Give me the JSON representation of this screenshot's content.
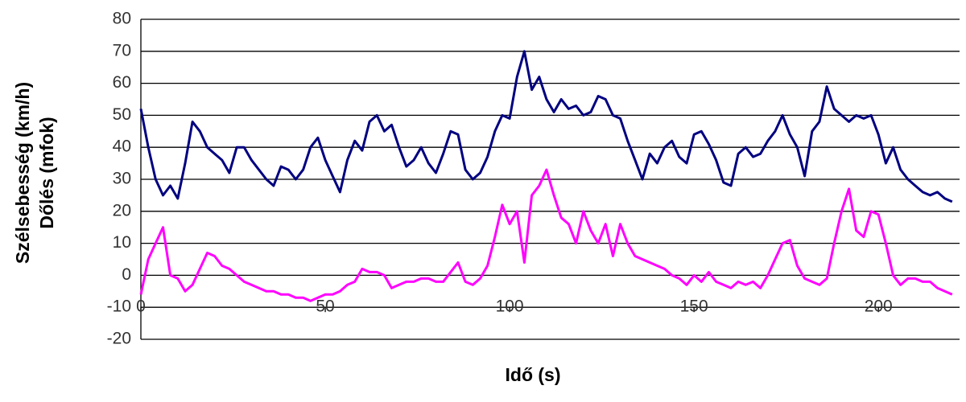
{
  "chart_data": {
    "type": "line",
    "xlabel": "Idő (s)",
    "x": [
      0,
      2,
      4,
      6,
      8,
      10,
      12,
      14,
      16,
      18,
      20,
      22,
      24,
      26,
      28,
      30,
      32,
      34,
      36,
      38,
      40,
      42,
      44,
      46,
      48,
      50,
      52,
      54,
      56,
      58,
      60,
      62,
      64,
      66,
      68,
      70,
      72,
      74,
      76,
      78,
      80,
      82,
      84,
      86,
      88,
      90,
      92,
      94,
      96,
      98,
      100,
      102,
      104,
      106,
      108,
      110,
      112,
      114,
      116,
      118,
      120,
      122,
      124,
      126,
      128,
      130,
      132,
      134,
      136,
      138,
      140,
      142,
      144,
      146,
      148,
      150,
      152,
      154,
      156,
      158,
      160,
      162,
      164,
      166,
      168,
      170,
      172,
      174,
      176,
      178,
      180,
      182,
      184,
      186,
      188,
      190,
      192,
      194,
      196,
      198,
      200,
      202,
      204,
      206,
      208,
      210,
      212,
      214,
      216,
      218,
      220
    ],
    "series": [
      {
        "name": "Szélsebesség (km/h)",
        "color": "#000080",
        "values": [
          52,
          40,
          30,
          25,
          28,
          24,
          35,
          48,
          45,
          40,
          38,
          36,
          32,
          40,
          40,
          36,
          33,
          30,
          28,
          34,
          33,
          30,
          33,
          40,
          43,
          36,
          31,
          26,
          36,
          42,
          39,
          48,
          50,
          45,
          47,
          40,
          34,
          36,
          40,
          35,
          32,
          38,
          45,
          44,
          33,
          30,
          32,
          37,
          45,
          50,
          49,
          62,
          70,
          58,
          62,
          55,
          51,
          55,
          52,
          53,
          50,
          51,
          56,
          55,
          50,
          49,
          42,
          36,
          30,
          38,
          35,
          40,
          42,
          37,
          35,
          44,
          45,
          41,
          36,
          29,
          28,
          38,
          40,
          37,
          38,
          42,
          45,
          50,
          44,
          40,
          31,
          45,
          48,
          59,
          52,
          50,
          48,
          50,
          49,
          50,
          44,
          35,
          40,
          33,
          30,
          28,
          26,
          25,
          26,
          24,
          23
        ]
      },
      {
        "name": "Dőlés (mfok)",
        "color": "#ff00ff",
        "values": [
          -6,
          5,
          10,
          15,
          0,
          -1,
          -5,
          -3,
          2,
          7,
          6,
          3,
          2,
          0,
          -2,
          -3,
          -4,
          -5,
          -5,
          -6,
          -6,
          -7,
          -7,
          -8,
          -7,
          -6,
          -6,
          -5,
          -3,
          -2,
          2,
          1,
          1,
          0,
          -4,
          -3,
          -2,
          -2,
          -1,
          -1,
          -2,
          -2,
          1,
          4,
          -2,
          -3,
          -1,
          3,
          12,
          22,
          16,
          20,
          4,
          25,
          28,
          33,
          25,
          18,
          16,
          10,
          20,
          14,
          10,
          16,
          6,
          16,
          10,
          6,
          5,
          4,
          3,
          2,
          0,
          -1,
          -3,
          0,
          -2,
          1,
          -2,
          -3,
          -4,
          -2,
          -3,
          -2,
          -4,
          0,
          5,
          10,
          11,
          3,
          -1,
          -2,
          -3,
          -1,
          10,
          20,
          27,
          14,
          12,
          20,
          19,
          10,
          0,
          -3,
          -1,
          -1,
          -2,
          -2,
          -4,
          -5,
          -6
        ]
      }
    ],
    "xlim": [
      0,
      222
    ],
    "xticks": [
      0,
      50,
      100,
      150,
      200
    ],
    "ylim": [
      -20,
      80
    ],
    "yticks": [
      -20,
      -10,
      0,
      10,
      20,
      30,
      40,
      50,
      60,
      70,
      80
    ],
    "grid": true
  }
}
